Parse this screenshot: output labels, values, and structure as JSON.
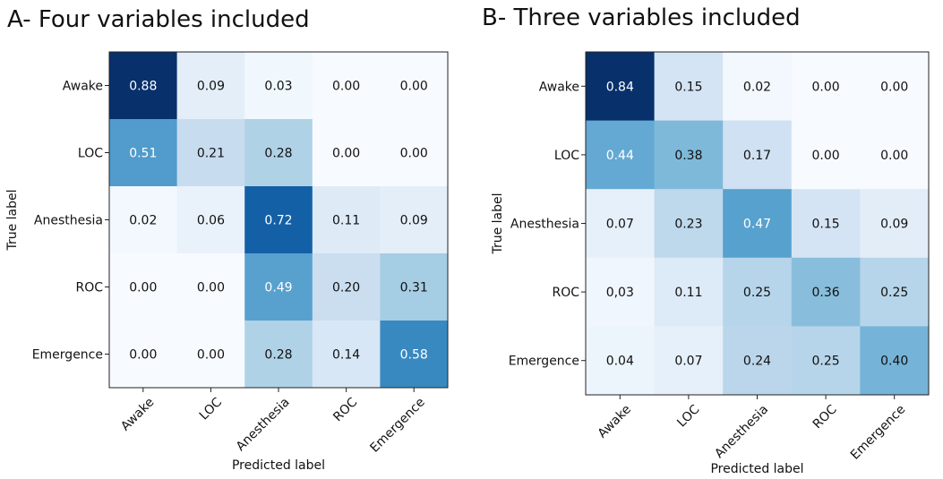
{
  "chart_data": [
    {
      "type": "heatmap",
      "title": "A- Four variables included",
      "xlabel": "Predicted label",
      "ylabel": "True label",
      "x_categories": [
        "Awake",
        "LOC",
        "Anesthesia",
        "ROC",
        "Emergence"
      ],
      "y_categories": [
        "Awake",
        "LOC",
        "Anesthesia",
        "ROC",
        "Emergence"
      ],
      "values": [
        [
          0.88,
          0.09,
          0.03,
          0.0,
          0.0
        ],
        [
          0.51,
          0.21,
          0.28,
          0.0,
          0.0
        ],
        [
          0.02,
          0.06,
          0.72,
          0.11,
          0.09
        ],
        [
          0.0,
          0.0,
          0.49,
          0.2,
          0.31
        ],
        [
          0.0,
          0.0,
          0.28,
          0.14,
          0.58
        ]
      ],
      "labels": [
        [
          "0.88",
          "0.09",
          "0.03",
          "0.00",
          "0.00"
        ],
        [
          "0.51",
          "0.21",
          "0.28",
          "0.00",
          "0.00"
        ],
        [
          "0.02",
          "0.06",
          "0.72",
          "0.11",
          "0.09"
        ],
        [
          "0.00",
          "0.00",
          "0.49",
          "0.20",
          "0.31"
        ],
        [
          "0.00",
          "0.00",
          "0.28",
          "0.14",
          "0.58"
        ]
      ],
      "colormap": "Blues"
    },
    {
      "type": "heatmap",
      "title": "B- Three variables included",
      "xlabel": "Predicted label",
      "ylabel": "True label",
      "x_categories": [
        "Awake",
        "LOC",
        "Anesthesia",
        "ROC",
        "Emergence"
      ],
      "y_categories": [
        "Awake",
        "LOC",
        "Anesthesia",
        "ROC",
        "Emergence"
      ],
      "values": [
        [
          0.84,
          0.15,
          0.02,
          0.0,
          0.0
        ],
        [
          0.44,
          0.38,
          0.17,
          0.0,
          0.0
        ],
        [
          0.07,
          0.23,
          0.47,
          0.15,
          0.09
        ],
        [
          0.03,
          0.11,
          0.25,
          0.36,
          0.25
        ],
        [
          0.04,
          0.07,
          0.24,
          0.25,
          0.4
        ]
      ],
      "labels": [
        [
          "0.84",
          "0.15",
          "0.02",
          "0.00",
          "0.00"
        ],
        [
          "0.44",
          "0.38",
          "0.17",
          "0.00",
          "0.00"
        ],
        [
          "0.07",
          "0.23",
          "0.47",
          "0.15",
          "0.09"
        ],
        [
          "0,03",
          "0.11",
          "0.25",
          "0.36",
          "0.25"
        ],
        [
          "0.04",
          "0.07",
          "0.24",
          "0.25",
          "0.40"
        ]
      ],
      "colormap": "Blues"
    }
  ]
}
